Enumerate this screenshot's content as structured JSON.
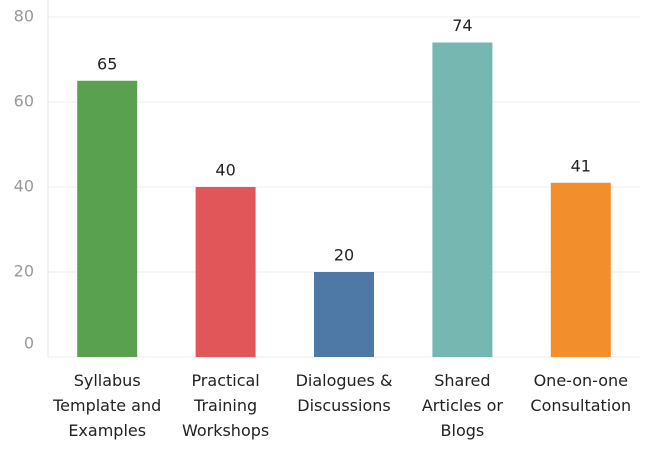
{
  "chart_data": {
    "type": "bar",
    "categories": [
      "Syllabus Template and Examples",
      "Practical Training Workshops",
      "Dialogues & Discussions",
      "Shared Articles or Blogs",
      "One-on-one Consultation"
    ],
    "values": [
      65,
      40,
      20,
      74,
      41
    ],
    "colors": [
      "#59a14f",
      "#e15759",
      "#4e79a7",
      "#76b7b2",
      "#f28e2b"
    ],
    "ylim": [
      0,
      80
    ],
    "yticks": [
      0,
      20,
      40,
      60,
      80
    ],
    "grid": true
  }
}
